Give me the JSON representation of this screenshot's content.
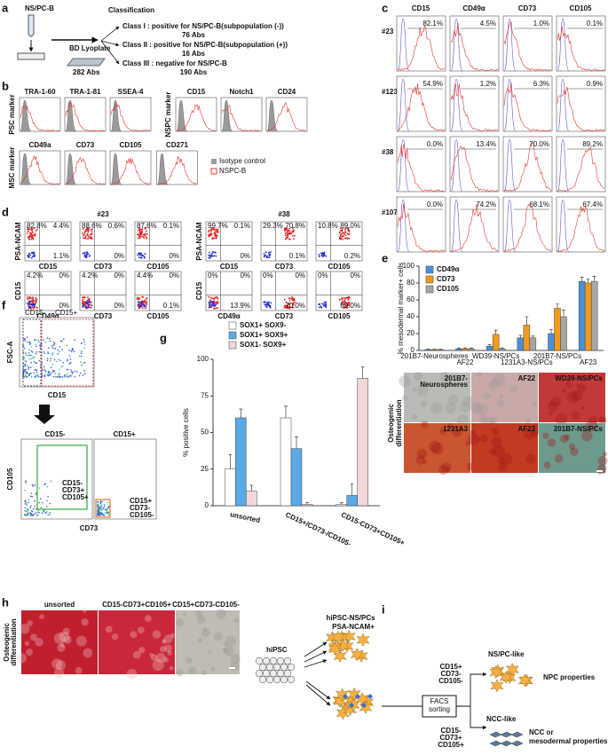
{
  "panels": {
    "a": {
      "label": "a",
      "source": "NS/PC-B",
      "plate": "BD Lyoplate",
      "total": "282 Abs",
      "heading": "Classification",
      "classes": [
        {
          "name": "Class I : positive for NS/PC-B(subpopulation (-))",
          "count": "76 Abs"
        },
        {
          "name": "Class II : positive for NS/PC-B(subpopulation (+))",
          "count": "16 Abs"
        },
        {
          "name": "Class III : negative for NS/PC-B",
          "count": "190 Abs"
        }
      ]
    },
    "b": {
      "label": "b",
      "groups": [
        {
          "ylabel": "PSC marker",
          "markers": [
            "TRA-1-60",
            "TRA-1-81",
            "SSEA-4"
          ]
        },
        {
          "ylabel": "NSPC marker",
          "markers": [
            "CD15",
            "Notch1",
            "CD24"
          ]
        },
        {
          "ylabel": "MSC marker",
          "markers": [
            "CD49a",
            "CD73",
            "CD105",
            "CD271"
          ]
        }
      ],
      "legend": [
        "Isotype control",
        "NSPC-B"
      ]
    },
    "c": {
      "label": "c",
      "columns": [
        "CD15",
        "CD49α",
        "CD73",
        "CD105"
      ],
      "rows": [
        {
          "name": "#23",
          "values": [
            "82.1%",
            "4.5%",
            "1.0%",
            "0.1%"
          ]
        },
        {
          "name": "#123",
          "values": [
            "54.9%",
            "1.2%",
            "6.3%",
            "0.9%"
          ]
        },
        {
          "name": "#38",
          "values": [
            "0.0%",
            "13.4%",
            "70.0%",
            "89.2%"
          ]
        },
        {
          "name": "#107",
          "values": [
            "0.0%",
            "74.2%",
            "68.1%",
            "67.4%"
          ]
        }
      ]
    },
    "d": {
      "label": "d",
      "groups": [
        {
          "name": "#23",
          "rows": [
            {
              "ylabel": "PSA-NCAM",
              "plots": [
                {
                  "xlabel": "CD15",
                  "quadrants": [
                    "82.8%",
                    "4.4%",
                    "1.1%"
                  ]
                },
                {
                  "xlabel": "CD73",
                  "quadrants": [
                    "88.6%",
                    "0.6%",
                    "0%"
                  ]
                },
                {
                  "xlabel": "CD105",
                  "quadrants": [
                    "87.6%",
                    "0.1%",
                    "0%"
                  ]
                }
              ]
            },
            {
              "ylabel": "CD15",
              "plots": [
                {
                  "xlabel": "CD49α",
                  "quadrants": [
                    "4.2%",
                    "0%",
                    "0%"
                  ]
                },
                {
                  "xlabel": "CD73",
                  "quadrants": [
                    "4.2%",
                    "0%",
                    "0%"
                  ]
                },
                {
                  "xlabel": "CD105",
                  "quadrants": [
                    "4.4%",
                    "0%",
                    "0.1%"
                  ]
                }
              ]
            }
          ]
        },
        {
          "name": "#38",
          "rows": [
            {
              "ylabel": "PSA-NCAM",
              "plots": [
                {
                  "xlabel": "CD15",
                  "quadrants": [
                    "99.7%",
                    "0.1%",
                    "0%"
                  ]
                },
                {
                  "xlabel": "CD73",
                  "quadrants": [
                    "29.3%",
                    "70.8%",
                    "0.1%"
                  ]
                },
                {
                  "xlabel": "CD105",
                  "quadrants": [
                    "10.8%",
                    "89.0%",
                    "0.2%"
                  ]
                }
              ]
            },
            {
              "ylabel": "CD15",
              "plots": [
                {
                  "xlabel": "CD49α",
                  "quadrants": [
                    "0%",
                    "0%",
                    "13.9%"
                  ]
                },
                {
                  "xlabel": "CD73",
                  "quadrants": [
                    "0%",
                    "0%",
                    "70.0%"
                  ]
                },
                {
                  "xlabel": "CD105",
                  "quadrants": [
                    "0%",
                    "0%",
                    "89.0%"
                  ]
                }
              ]
            }
          ]
        }
      ]
    },
    "e": {
      "label": "e",
      "image_ylabel": [
        "Osteogenic",
        "differentiation"
      ],
      "image_labels": [
        [
          "201B7-",
          "Neurospheres"
        ],
        [
          "AF22"
        ],
        [
          "WD39-NS/PCs"
        ],
        [
          "1231A3"
        ],
        [
          "AF23"
        ],
        [
          "201B7-NS/PCs"
        ]
      ]
    },
    "f": {
      "label": "f",
      "gates": [
        "CD15-",
        "CD15+"
      ],
      "top_ylabel": "FSC-A",
      "top_xlabel": "CD15",
      "headings": [
        "CD15-",
        "CD15+"
      ],
      "bottom_ylabel": "CD105",
      "bottom_xlabel": "CD73",
      "gate_labels": [
        [
          "CD15-",
          "CD73+",
          "CD105+"
        ],
        [
          "CD15+",
          "CD73-",
          "CD105-"
        ]
      ]
    },
    "g": {
      "label": "g"
    },
    "h": {
      "label": "h",
      "ylabel": [
        "Osteogenic",
        "differentiation"
      ],
      "columns": [
        "unsorted",
        "CD15-CD73+CD105+",
        "CD15+CD73-CD105-"
      ]
    },
    "i": {
      "label": "i",
      "hipsc": "hiPSC",
      "nspc": "hiPSC-NS/PCs",
      "psa": "PSA-NCAM+",
      "nspc_like": "NS/PC-like",
      "nspc_markers": [
        "CD15+",
        "CD73-",
        "CD105-"
      ],
      "npc": "NPC properties",
      "facs": [
        "FACS",
        "sorting"
      ],
      "ncc_like": "NCC-like",
      "ncc_markers": [
        "CD15-",
        "CD73+",
        "CD105+"
      ],
      "ncc_props": [
        "NCC or",
        "mesodermal properties"
      ]
    }
  },
  "chart_data": [
    {
      "type": "bar",
      "ylabel": "% mesodermal marker+ cells",
      "categories": [
        "201B7-Neurospheres",
        "AF22",
        "WD39-NS/PCs",
        "1231A3-NS/PCs",
        "201B7-NS/PCs",
        "AF23"
      ],
      "series": [
        {
          "name": "CD49α",
          "color": "#4a90d9",
          "values": [
            1,
            2,
            5,
            15,
            20,
            82
          ],
          "errors": [
            0.5,
            1,
            2,
            3,
            5,
            5
          ]
        },
        {
          "name": "CD73",
          "color": "#f39a1e",
          "values": [
            1,
            2,
            19,
            30,
            50,
            80
          ],
          "errors": [
            0.5,
            1,
            5,
            10,
            5,
            5
          ]
        },
        {
          "name": "CD105",
          "color": "#a6a6a6",
          "values": [
            1,
            2,
            2,
            15,
            40,
            82
          ],
          "errors": [
            0.5,
            1,
            1,
            2,
            8,
            6
          ]
        }
      ],
      "ylim": [
        0,
        100
      ],
      "yticks": [
        0,
        20,
        40,
        60,
        80,
        100
      ],
      "legend": "upper left"
    },
    {
      "type": "bar",
      "ylabel": "% positive cells",
      "categories": [
        "unsorted",
        "CD15+/CD73-/CD105-",
        "CD15-CD73+CD105+"
      ],
      "category_colors": [
        "#111111",
        "#e8762b",
        "#2eaa3a"
      ],
      "series": [
        {
          "name": "SOX1+ SOX9-",
          "color": "#ffffff",
          "values": [
            25,
            60,
            1
          ],
          "errors": [
            10,
            8,
            1
          ]
        },
        {
          "name": "SOX1+ SOX9+",
          "color": "#5aa9e6",
          "values": [
            60,
            39,
            7
          ],
          "errors": [
            6,
            8,
            8
          ]
        },
        {
          "name": "SOX1- SOX9+",
          "color": "#f2d7d7",
          "values": [
            10,
            1,
            87
          ],
          "errors": [
            4,
            1,
            8
          ]
        }
      ],
      "ylim": [
        0,
        100
      ],
      "yticks": [
        0,
        25,
        50,
        75,
        100
      ],
      "legend": "top"
    }
  ]
}
